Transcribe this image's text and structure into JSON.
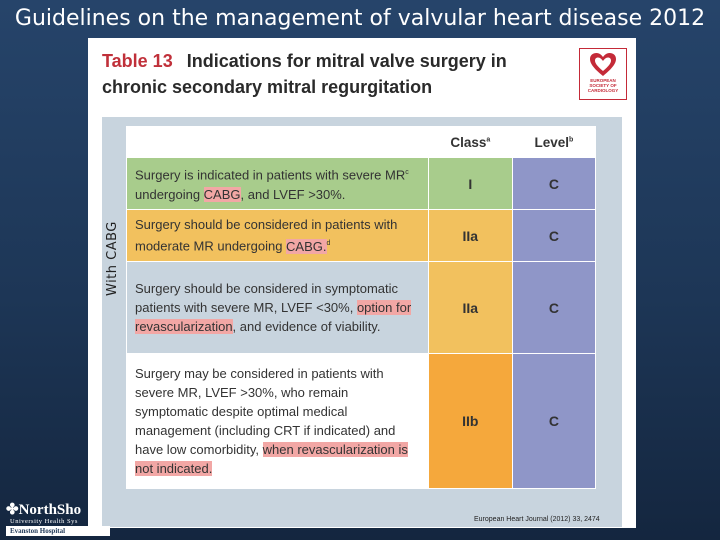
{
  "slide": {
    "title": "Guidelines on the management of valvular heart disease 2012"
  },
  "side_label": "With CABG",
  "document": {
    "table_number": "Table 13",
    "table_title": "Indications for mitral valve surgery in chronic secondary mitral regurgitation",
    "citation": "European Heart Journal (2012) 33, 2474"
  },
  "esc_logo": {
    "text_lines": [
      "EUROPEAN",
      "SOCIETY OF",
      "CARDIOLOGY"
    ]
  },
  "table": {
    "headers": {
      "class": "Class",
      "class_sup": "a",
      "level": "Level",
      "level_sup": "b"
    },
    "rows": [
      {
        "parts": {
          "a": "Surgery is indicated in patients with severe MR",
          "sup1": "c",
          "b": " undergoing ",
          "hl": "CABG",
          "c": ", and LVEF >30%."
        },
        "class": "I",
        "level": "C",
        "class_color": "#a8cc8c",
        "text_color": "#a8cc8c"
      },
      {
        "parts": {
          "a": "Surgery should be considered in patients with moderate MR undergoing ",
          "hl": "CABG.",
          "sup2": "d"
        },
        "class": "IIa",
        "level": "C",
        "class_color": "#f2c15e",
        "text_color": "#f2c15e"
      },
      {
        "parts": {
          "a": "Surgery should be considered in symptomatic patients with severe MR, LVEF <30%, ",
          "hl": "option for revascularization",
          "c": ", and evidence of viability."
        },
        "class": "IIa",
        "level": "C",
        "class_color": "#f2c15e",
        "text_color": "#c8d4de"
      },
      {
        "parts": {
          "a": "Surgery may be considered in patients with severe MR, LVEF >30%, who remain symptomatic despite optimal medical management (including CRT if indicated) and have low comorbidity, ",
          "hl": "when revascularization is not indicated."
        },
        "class": "IIb",
        "level": "C",
        "class_color": "#f5a83c",
        "text_color": "#ffffff"
      }
    ]
  },
  "branding": {
    "name": "NorthSho",
    "sub": "University Health Sys",
    "hospital": "Evanston Hospital"
  }
}
